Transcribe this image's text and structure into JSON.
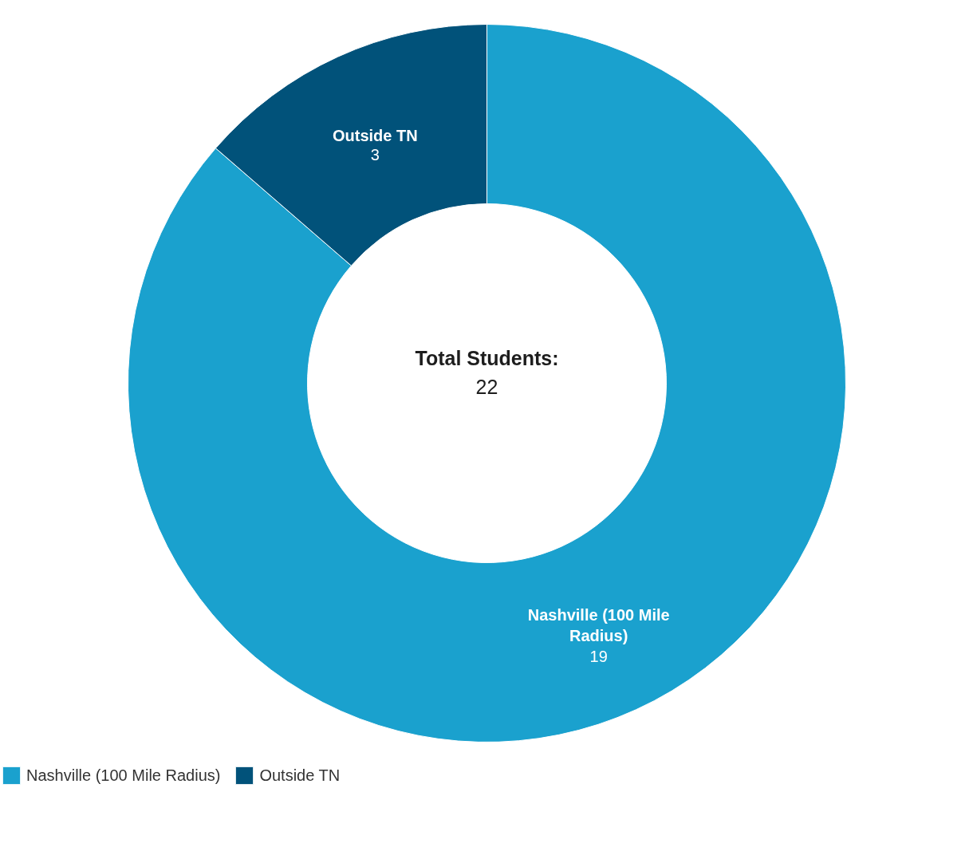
{
  "chart_data": {
    "type": "donut",
    "categories": [
      "Nashville (100 Mile Radius)",
      "Outside TN"
    ],
    "values": [
      19,
      3
    ],
    "colors": [
      "#1aa1ce",
      "#01527a"
    ],
    "data_labels": true,
    "legend": "bottom left",
    "annotations": [
      "Total Students:",
      "22"
    ]
  }
}
